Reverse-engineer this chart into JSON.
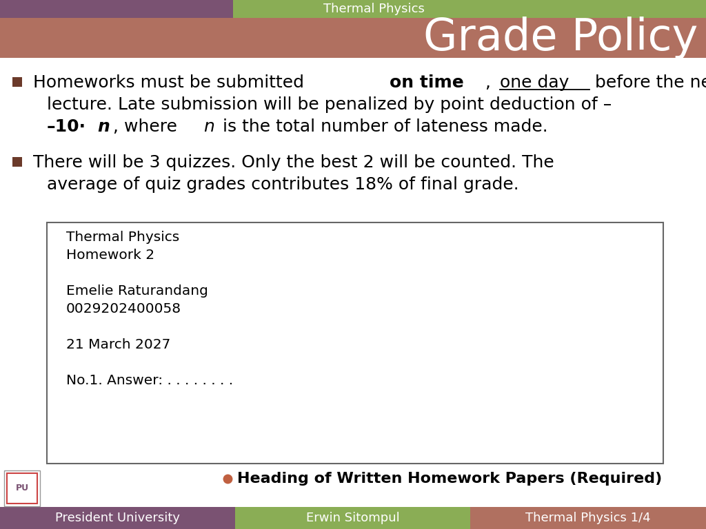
{
  "top_bar_purple": "#7a5272",
  "top_bar_green": "#8aad55",
  "header_bg": "#b07060",
  "footer1": "#7a5272",
  "footer2": "#8aad55",
  "footer3": "#b07060",
  "white": "#ffffff",
  "black": "#000000",
  "bullet_sq_color": "#6b3a2a",
  "dot_color": "#c06040",
  "box_edge": "#666666",
  "top_bar_text": "Thermal Physics",
  "title_text": "Grade Policy",
  "footer_texts": [
    "President University",
    "Erwin Sitompul",
    "Thermal Physics 1/4"
  ]
}
